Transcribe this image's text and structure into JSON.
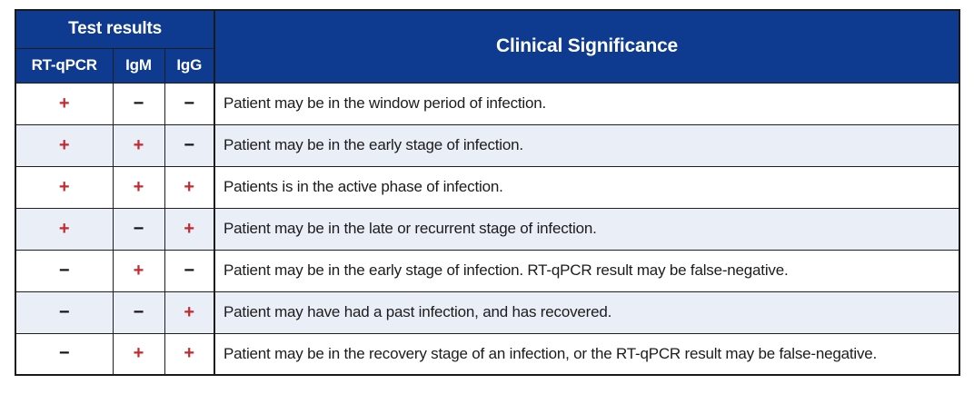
{
  "table": {
    "header": {
      "group_title": "Test results",
      "columns": [
        "RT-qPCR",
        "IgM",
        "IgG"
      ],
      "significance_title": "Clinical Significance"
    },
    "rows": [
      {
        "results": [
          "+",
          "−",
          "−"
        ],
        "significance": "Patient may be in the window period of infection."
      },
      {
        "results": [
          "+",
          "+",
          "−"
        ],
        "significance": "Patient may be in the early stage of infection."
      },
      {
        "results": [
          "+",
          "+",
          "+"
        ],
        "significance": "Patients is in the active phase of infection."
      },
      {
        "results": [
          "+",
          "−",
          "+"
        ],
        "significance": "Patient may be in the late or recurrent stage of infection."
      },
      {
        "results": [
          "−",
          "+",
          "−"
        ],
        "significance": "Patient may be in the early stage of infection. RT-qPCR result may be false-negative."
      },
      {
        "results": [
          "−",
          "−",
          "+"
        ],
        "significance": "Patient may have had a past infection, and has recovered."
      },
      {
        "results": [
          "−",
          "+",
          "+"
        ],
        "significance": "Patient may be in the recovery stage of an infection, or the RT-qPCR result may be false-negative."
      }
    ],
    "colors": {
      "header_background": "#0e3a8f",
      "header_text": "#ffffff",
      "row_alternate_background": "#e9eef7",
      "positive_sign": "#c4292f",
      "negative_sign": "#141414",
      "body_text": "#1c1c1c",
      "border": "#1a1a1a"
    }
  }
}
